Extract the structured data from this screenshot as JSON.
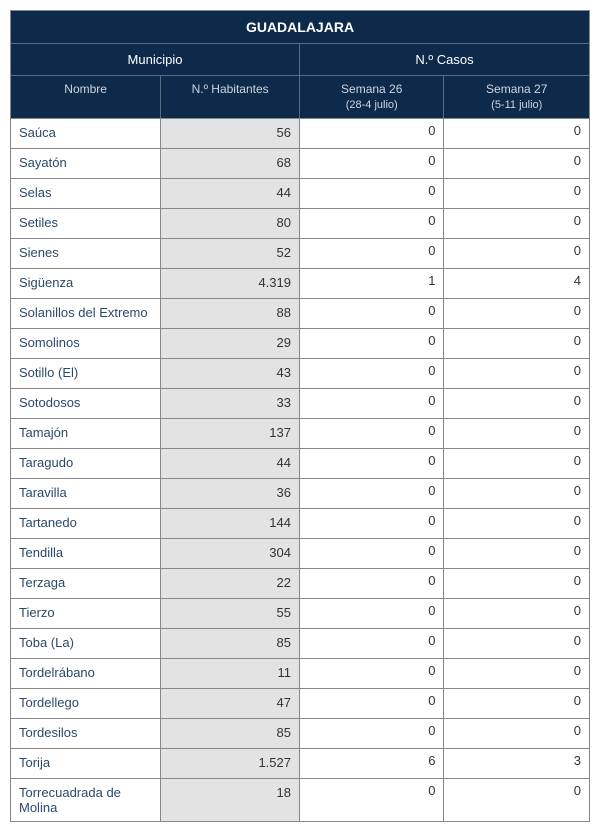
{
  "title": "GUADALAJARA",
  "headers": {
    "municipio": "Municipio",
    "casos": "N.º Casos",
    "nombre": "Nombre",
    "habitantes": "N.º Habitantes",
    "week1": "Semana 26",
    "week1_dates": "(28-4 julio)",
    "week2": "Semana 27",
    "week2_dates": "(5-11 julio)"
  },
  "style": {
    "header_bg": "#0e2a4a",
    "header_fg": "#ffffff",
    "subheader_fg": "#cdd6e0",
    "hab_bg": "#e3e3e3",
    "text_color": "#2a4a6a",
    "border_color": "#888888",
    "col_widths_pct": [
      26,
      24,
      25,
      25
    ],
    "title_fontsize": 14,
    "header_fontsize": 13,
    "sub_fontsize": 12,
    "row_fontsize": 13
  },
  "rows": [
    {
      "name": "Saúca",
      "hab": "56",
      "w1": "0",
      "w2": "0"
    },
    {
      "name": "Sayatón",
      "hab": "68",
      "w1": "0",
      "w2": "0"
    },
    {
      "name": "Selas",
      "hab": "44",
      "w1": "0",
      "w2": "0"
    },
    {
      "name": "Setiles",
      "hab": "80",
      "w1": "0",
      "w2": "0"
    },
    {
      "name": "Sienes",
      "hab": "52",
      "w1": "0",
      "w2": "0"
    },
    {
      "name": "Sigüenza",
      "hab": "4.319",
      "w1": "1",
      "w2": "4"
    },
    {
      "name": "Solanillos del Extremo",
      "hab": "88",
      "w1": "0",
      "w2": "0"
    },
    {
      "name": "Somolinos",
      "hab": "29",
      "w1": "0",
      "w2": "0"
    },
    {
      "name": "Sotillo (El)",
      "hab": "43",
      "w1": "0",
      "w2": "0"
    },
    {
      "name": "Sotodosos",
      "hab": "33",
      "w1": "0",
      "w2": "0"
    },
    {
      "name": "Tamajón",
      "hab": "137",
      "w1": "0",
      "w2": "0"
    },
    {
      "name": "Taragudo",
      "hab": "44",
      "w1": "0",
      "w2": "0"
    },
    {
      "name": "Taravilla",
      "hab": "36",
      "w1": "0",
      "w2": "0"
    },
    {
      "name": "Tartanedo",
      "hab": "144",
      "w1": "0",
      "w2": "0"
    },
    {
      "name": "Tendilla",
      "hab": "304",
      "w1": "0",
      "w2": "0"
    },
    {
      "name": "Terzaga",
      "hab": "22",
      "w1": "0",
      "w2": "0"
    },
    {
      "name": "Tierzo",
      "hab": "55",
      "w1": "0",
      "w2": "0"
    },
    {
      "name": "Toba (La)",
      "hab": "85",
      "w1": "0",
      "w2": "0"
    },
    {
      "name": "Tordelrábano",
      "hab": "11",
      "w1": "0",
      "w2": "0"
    },
    {
      "name": "Tordellego",
      "hab": "47",
      "w1": "0",
      "w2": "0"
    },
    {
      "name": "Tordesilos",
      "hab": "85",
      "w1": "0",
      "w2": "0"
    },
    {
      "name": "Torija",
      "hab": "1.527",
      "w1": "6",
      "w2": "3"
    },
    {
      "name": "Torrecuadrada de Molina",
      "hab": "18",
      "w1": "0",
      "w2": "0"
    }
  ]
}
